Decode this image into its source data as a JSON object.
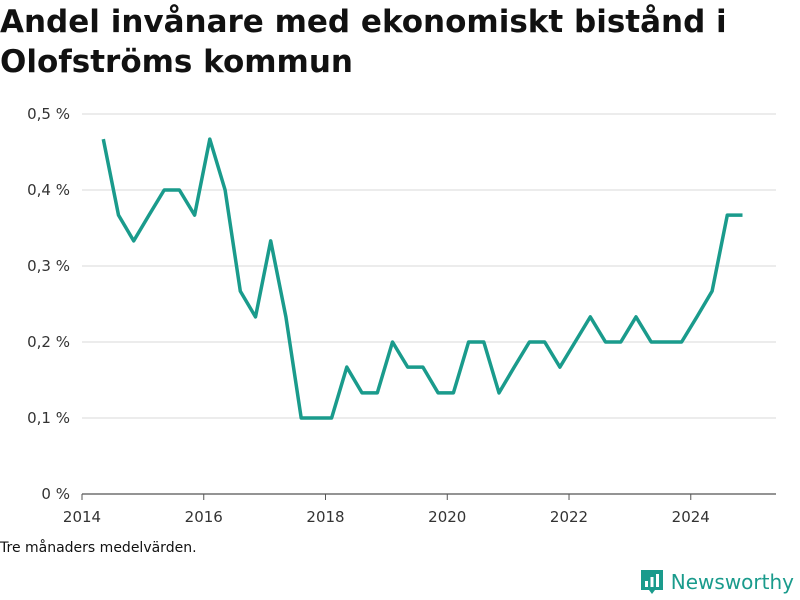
{
  "chart_data": {
    "type": "line",
    "title": "Andel invånare med ekonomiskt bistånd i Olofströms kommun",
    "xlabel": "",
    "ylabel": "",
    "x_ticks": [
      "2014",
      "2016",
      "2018",
      "2020",
      "2022",
      "2024"
    ],
    "y_ticks": [
      "0 %",
      "0,1 %",
      "0,2 %",
      "0,3 %",
      "0,4 %",
      "0,5 %"
    ],
    "xlim": [
      2014.0,
      2025.4
    ],
    "ylim": [
      0,
      0.5
    ],
    "grid": true,
    "series": [
      {
        "color": "#1a9b8c",
        "x": [
          2014.35,
          2014.6,
          2014.85,
          2015.1,
          2015.35,
          2015.6,
          2015.85,
          2016.1,
          2016.35,
          2016.6,
          2016.85,
          2017.1,
          2017.35,
          2017.6,
          2017.85,
          2018.1,
          2018.35,
          2018.6,
          2018.85,
          2019.1,
          2019.35,
          2019.6,
          2019.85,
          2020.1,
          2020.35,
          2020.6,
          2020.85,
          2021.1,
          2021.35,
          2021.6,
          2021.85,
          2022.1,
          2022.35,
          2022.6,
          2022.85,
          2023.1,
          2023.35,
          2023.6,
          2023.85,
          2024.1,
          2024.35,
          2024.6,
          2024.85
        ],
        "values": [
          0.467,
          0.367,
          0.333,
          0.367,
          0.4,
          0.4,
          0.367,
          0.467,
          0.4,
          0.267,
          0.233,
          0.333,
          0.233,
          0.1,
          0.1,
          0.1,
          0.167,
          0.133,
          0.133,
          0.2,
          0.167,
          0.167,
          0.133,
          0.133,
          0.2,
          0.2,
          0.133,
          0.167,
          0.2,
          0.2,
          0.167,
          0.2,
          0.233,
          0.2,
          0.2,
          0.233,
          0.2,
          0.2,
          0.2,
          0.233,
          0.267,
          0.367,
          0.367
        ]
      }
    ]
  },
  "footnote": "Tre månaders medelvärden.",
  "brand": {
    "name": "Newsworthy",
    "icon": "newsworthy-logo-icon",
    "color": "#1a9b8c"
  }
}
